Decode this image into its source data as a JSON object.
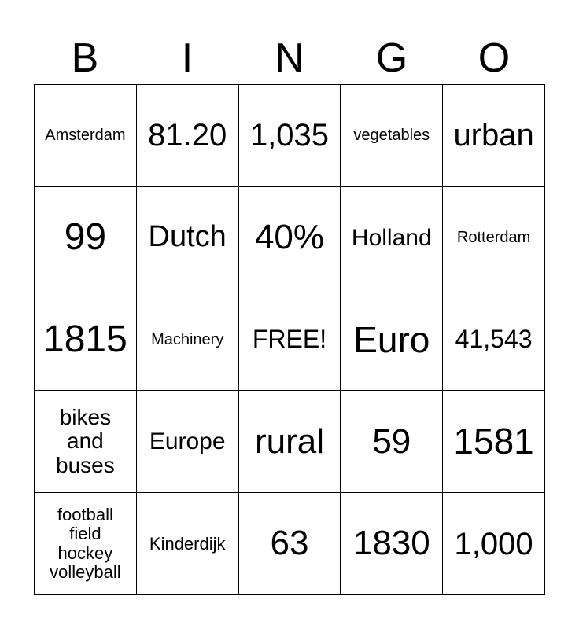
{
  "header": [
    "B",
    "I",
    "N",
    "G",
    "O"
  ],
  "cells": [
    [
      "Amsterdam",
      "81.20",
      "1,035",
      "vegetables",
      "urban"
    ],
    [
      "99",
      "Dutch",
      "40%",
      "Holland",
      "Rotterdam"
    ],
    [
      "1815",
      "Machinery",
      "FREE!",
      "Euro",
      "41,543"
    ],
    [
      "bikes\nand\nbuses",
      "Europe",
      "rural",
      "59",
      "1581"
    ],
    [
      "football\nfield\nhockey\nvolleyball",
      "Kinderdijk",
      "63",
      "1830",
      "1,000"
    ]
  ]
}
